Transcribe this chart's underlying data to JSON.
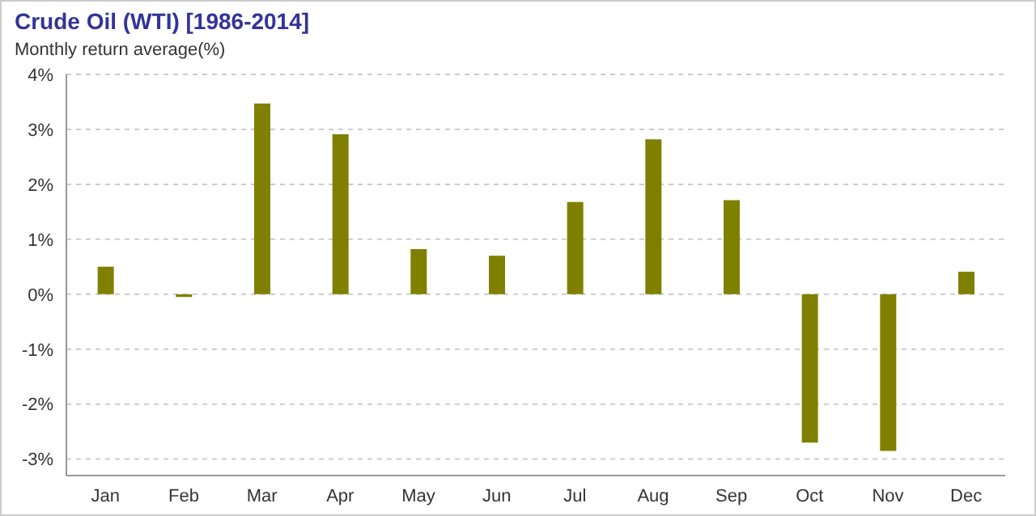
{
  "chart_data": {
    "type": "bar",
    "title": "Crude Oil (WTI) [1986-2014]",
    "ylabel": "Monthly return average(%)",
    "categories": [
      "Jan",
      "Feb",
      "Mar",
      "Apr",
      "May",
      "Jun",
      "Jul",
      "Aug",
      "Sep",
      "Oct",
      "Nov",
      "Dec"
    ],
    "values": [
      0.5,
      -0.05,
      3.47,
      2.91,
      0.82,
      0.7,
      1.68,
      2.82,
      1.71,
      -2.7,
      -2.85,
      0.41
    ],
    "color": "#808000",
    "ylim": [
      -3.3,
      4
    ],
    "yticks": [
      {
        "value": -3,
        "label": "-3%"
      },
      {
        "value": -2,
        "label": "-2%"
      },
      {
        "value": -1,
        "label": "-1%"
      },
      {
        "value": 0,
        "label": "0%"
      },
      {
        "value": 1,
        "label": "1%"
      },
      {
        "value": 2,
        "label": "2%"
      },
      {
        "value": 3,
        "label": "3%"
      },
      {
        "value": 4,
        "label": "4%"
      }
    ],
    "grid": "y",
    "legend": false
  }
}
